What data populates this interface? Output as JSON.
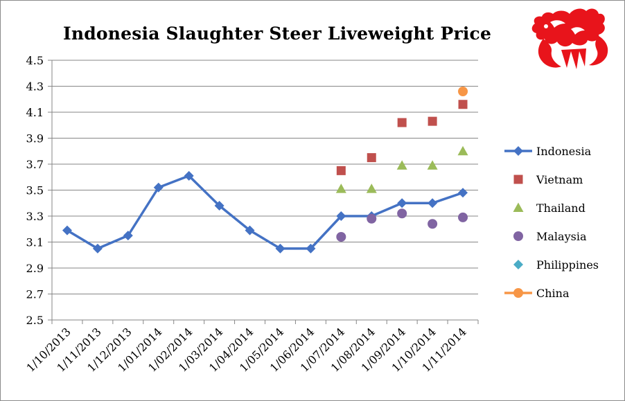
{
  "chart_data": {
    "type": "line",
    "title": "Indonesia Slaughter Steer Liveweight Price",
    "xlabel": "",
    "ylabel": "",
    "ylim": [
      2.5,
      4.5
    ],
    "yticks": [
      "2.5",
      "2.7",
      "2.9",
      "3.1",
      "3.3",
      "3.5",
      "3.7",
      "3.9",
      "4.1",
      "4.3",
      "4.5"
    ],
    "categories": [
      "1/10/2013",
      "1/11/2013",
      "1/12/2013",
      "1/01/2014",
      "1/02/2014",
      "1/03/2014",
      "1/04/2014",
      "1/05/2014",
      "1/06/2014",
      "1/07/2014",
      "1/08/2014",
      "1/09/2014",
      "1/10/2014",
      "1/11/2014"
    ],
    "grid": true,
    "legend_position": "right",
    "series": [
      {
        "name": "Indonesia",
        "style": "line",
        "marker": "diamond",
        "color": "#4472C4",
        "values": [
          3.19,
          3.05,
          3.15,
          3.52,
          3.61,
          3.38,
          3.19,
          3.05,
          3.05,
          3.3,
          3.3,
          3.4,
          3.4,
          3.48
        ]
      },
      {
        "name": "Vietnam",
        "style": "marker",
        "marker": "square",
        "color": "#C0504D",
        "values": [
          null,
          null,
          null,
          null,
          null,
          null,
          null,
          null,
          null,
          3.65,
          3.75,
          4.02,
          4.03,
          4.16
        ]
      },
      {
        "name": "Thailand",
        "style": "marker",
        "marker": "triangle",
        "color": "#9BBB59",
        "values": [
          null,
          null,
          null,
          null,
          null,
          null,
          null,
          null,
          null,
          3.51,
          3.51,
          3.69,
          3.69,
          3.8
        ]
      },
      {
        "name": "Malaysia",
        "style": "marker",
        "marker": "circle",
        "color": "#8064A2",
        "values": [
          null,
          null,
          null,
          null,
          null,
          null,
          null,
          null,
          null,
          3.14,
          3.28,
          3.32,
          3.24,
          3.29
        ]
      },
      {
        "name": "Philippines",
        "style": "marker",
        "marker": "diamond",
        "color": "#4BACC6",
        "values": [
          null,
          null,
          null,
          null,
          null,
          null,
          null,
          null,
          null,
          null,
          null,
          null,
          null,
          null
        ]
      },
      {
        "name": "China",
        "style": "line",
        "marker": "circle",
        "color": "#F79646",
        "values": [
          null,
          null,
          null,
          null,
          null,
          null,
          null,
          null,
          null,
          null,
          null,
          null,
          null,
          4.26
        ]
      }
    ]
  },
  "logo": {
    "icon": "red-dragon-icon",
    "color": "#E8141B"
  }
}
